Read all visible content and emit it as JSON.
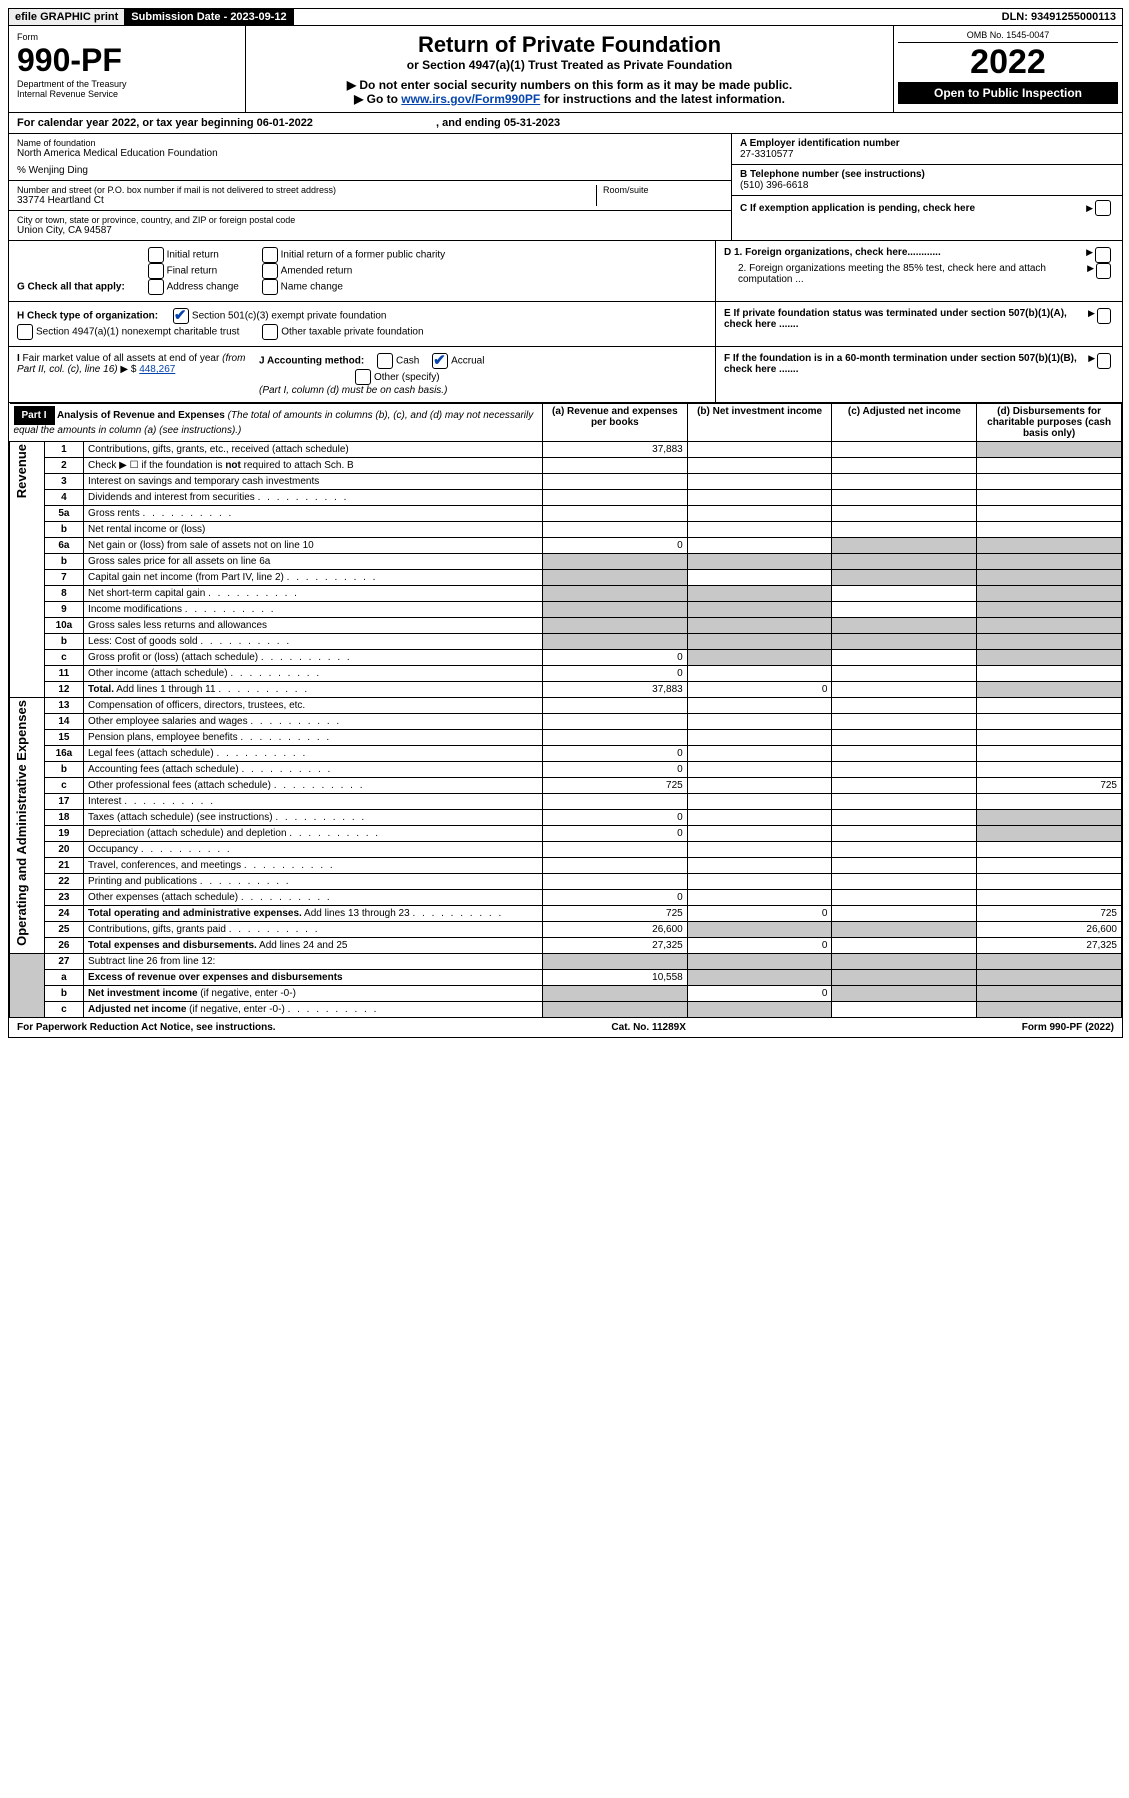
{
  "top": {
    "efile": "efile GRAPHIC print",
    "submission": "Submission Date - 2023-09-12",
    "dln": "DLN: 93491255000113"
  },
  "header": {
    "form_word": "Form",
    "form_num": "990-PF",
    "dept": "Department of the Treasury",
    "irs": "Internal Revenue Service",
    "title": "Return of Private Foundation",
    "subtitle": "or Section 4947(a)(1) Trust Treated as Private Foundation",
    "note1": "▶ Do not enter social security numbers on this form as it may be made public.",
    "note2_pre": "▶ Go to ",
    "note2_link": "www.irs.gov/Form990PF",
    "note2_post": " for instructions and the latest information.",
    "omb": "OMB No. 1545-0047",
    "year": "2022",
    "inspect": "Open to Public Inspection"
  },
  "cal": {
    "text_pre": "For calendar year 2022, or tax year beginning ",
    "begin": "06-01-2022",
    "mid": " , and ending ",
    "end": "05-31-2023"
  },
  "id": {
    "name_lbl": "Name of foundation",
    "name": "North America Medical Education Foundation",
    "co": "% Wenjing Ding",
    "addr_lbl": "Number and street (or P.O. box number if mail is not delivered to street address)",
    "addr": "33774 Heartland Ct",
    "room_lbl": "Room/suite",
    "city_lbl": "City or town, state or province, country, and ZIP or foreign postal code",
    "city": "Union City, CA  94587",
    "ein_lbl": "A Employer identification number",
    "ein": "27-3310577",
    "tel_lbl": "B Telephone number (see instructions)",
    "tel": "(510) 396-6618",
    "c": "C If exemption application is pending, check here",
    "d1": "D 1. Foreign organizations, check here............",
    "d2": "2. Foreign organizations meeting the 85% test, check here and attach computation ...",
    "e": "E  If private foundation status was terminated under section 507(b)(1)(A), check here .......",
    "f": "F  If the foundation is in a 60-month termination under section 507(b)(1)(B), check here .......",
    "g_lbl": "G Check all that apply:",
    "g_opts": [
      "Initial return",
      "Final return",
      "Address change",
      "Initial return of a former public charity",
      "Amended return",
      "Name change"
    ],
    "h_lbl": "H Check type of organization:",
    "h1": "Section 501(c)(3) exempt private foundation",
    "h2": "Section 4947(a)(1) nonexempt charitable trust",
    "h3": "Other taxable private foundation",
    "i_lbl": "I Fair market value of all assets at end of year (from Part II, col. (c), line 16) ▶ $ ",
    "i_val": "448,267",
    "j_lbl": "J Accounting method:",
    "j_cash": "Cash",
    "j_accrual": "Accrual",
    "j_other": "Other (specify)",
    "j_note": "(Part I, column (d) must be on cash basis.)"
  },
  "part1": {
    "hdr": "Part I",
    "title": "Analysis of Revenue and Expenses",
    "title_note": " (The total of amounts in columns (b), (c), and (d) may not necessarily equal the amounts in column (a) (see instructions).)",
    "cols": {
      "a": "(a)  Revenue and expenses per books",
      "b": "(b)  Net investment income",
      "c": "(c)  Adjusted net income",
      "d": "(d)  Disbursements for charitable purposes (cash basis only)"
    },
    "vlabels": {
      "rev": "Revenue",
      "exp": "Operating and Administrative Expenses"
    },
    "rows": [
      {
        "n": "1",
        "d": "Contributions, gifts, grants, etc., received (attach schedule)",
        "a": "37,883",
        "dgrey": true
      },
      {
        "n": "2",
        "d": "Check ▶ ☐ if the foundation is <b>not</b> required to attach Sch. B",
        "nocols": true
      },
      {
        "n": "3",
        "d": "Interest on savings and temporary cash investments"
      },
      {
        "n": "4",
        "d": "Dividends and interest from securities",
        "dots": true
      },
      {
        "n": "5a",
        "d": "Gross rents",
        "dots": true
      },
      {
        "n": "b",
        "d": "Net rental income or (loss)",
        "short": true
      },
      {
        "n": "6a",
        "d": "Net gain or (loss) from sale of assets not on line 10",
        "a": "0",
        "cgrey": true,
        "dgrey": true
      },
      {
        "n": "b",
        "d": "Gross sales price for all assets on line 6a",
        "short": true,
        "bgrey": true,
        "cgrey": true,
        "dgrey": true,
        "agrey": true
      },
      {
        "n": "7",
        "d": "Capital gain net income (from Part IV, line 2)",
        "dots": true,
        "agrey": true,
        "cgrey": true,
        "dgrey": true
      },
      {
        "n": "8",
        "d": "Net short-term capital gain",
        "dots": true,
        "agrey": true,
        "bgrey": true,
        "dgrey": true
      },
      {
        "n": "9",
        "d": "Income modifications",
        "dots": true,
        "agrey": true,
        "bgrey": true,
        "dgrey": true
      },
      {
        "n": "10a",
        "d": "Gross sales less returns and allowances",
        "short": true,
        "agrey": true,
        "bgrey": true,
        "cgrey": true,
        "dgrey": true
      },
      {
        "n": "b",
        "d": "Less: Cost of goods sold",
        "dots": true,
        "short": true,
        "agrey": true,
        "bgrey": true,
        "cgrey": true,
        "dgrey": true
      },
      {
        "n": "c",
        "d": "Gross profit or (loss) (attach schedule)",
        "dots": true,
        "a": "0",
        "bgrey": true,
        "dgrey": true
      },
      {
        "n": "11",
        "d": "Other income (attach schedule)",
        "dots": true,
        "a": "0"
      },
      {
        "n": "12",
        "d": "<b>Total.</b> Add lines 1 through 11",
        "dots": true,
        "a": "37,883",
        "b": "0",
        "dgrey": true
      }
    ],
    "exp_rows": [
      {
        "n": "13",
        "d": "Compensation of officers, directors, trustees, etc."
      },
      {
        "n": "14",
        "d": "Other employee salaries and wages",
        "dots": true
      },
      {
        "n": "15",
        "d": "Pension plans, employee benefits",
        "dots": true
      },
      {
        "n": "16a",
        "d": "Legal fees (attach schedule)",
        "dots": true,
        "a": "0"
      },
      {
        "n": "b",
        "d": "Accounting fees (attach schedule)",
        "dots": true,
        "a": "0"
      },
      {
        "n": "c",
        "d": "Other professional fees (attach schedule)",
        "dots": true,
        "a": "725",
        "dd": "725"
      },
      {
        "n": "17",
        "d": "Interest",
        "dots": true
      },
      {
        "n": "18",
        "d": "Taxes (attach schedule) (see instructions)",
        "dots": true,
        "a": "0",
        "dgrey": true
      },
      {
        "n": "19",
        "d": "Depreciation (attach schedule) and depletion",
        "dots": true,
        "a": "0",
        "dgrey": true
      },
      {
        "n": "20",
        "d": "Occupancy",
        "dots": true
      },
      {
        "n": "21",
        "d": "Travel, conferences, and meetings",
        "dots": true
      },
      {
        "n": "22",
        "d": "Printing and publications",
        "dots": true
      },
      {
        "n": "23",
        "d": "Other expenses (attach schedule)",
        "dots": true,
        "a": "0"
      },
      {
        "n": "24",
        "d": "<b>Total operating and administrative expenses.</b> Add lines 13 through 23",
        "dots": true,
        "a": "725",
        "b": "0",
        "dd": "725"
      },
      {
        "n": "25",
        "d": "Contributions, gifts, grants paid",
        "dots": true,
        "a": "26,600",
        "bgrey": true,
        "cgrey": true,
        "dd": "26,600"
      },
      {
        "n": "26",
        "d": "<b>Total expenses and disbursements.</b> Add lines 24 and 25",
        "a": "27,325",
        "b": "0",
        "dd": "27,325"
      }
    ],
    "net_rows": [
      {
        "n": "27",
        "d": "Subtract line 26 from line 12:",
        "agrey": true,
        "bgrey": true,
        "cgrey": true,
        "dgrey": true
      },
      {
        "n": "a",
        "d": "<b>Excess of revenue over expenses and disbursements</b>",
        "a": "10,558",
        "bgrey": true,
        "cgrey": true,
        "dgrey": true
      },
      {
        "n": "b",
        "d": "<b>Net investment income</b> (if negative, enter -0-)",
        "agrey": true,
        "b": "0",
        "cgrey": true,
        "dgrey": true
      },
      {
        "n": "c",
        "d": "<b>Adjusted net income</b> (if negative, enter -0-)",
        "dots": true,
        "agrey": true,
        "bgrey": true,
        "dgrey": true
      }
    ]
  },
  "footer": {
    "left": "For Paperwork Reduction Act Notice, see instructions.",
    "mid": "Cat. No. 11289X",
    "right": "Form 990-PF (2022)"
  }
}
